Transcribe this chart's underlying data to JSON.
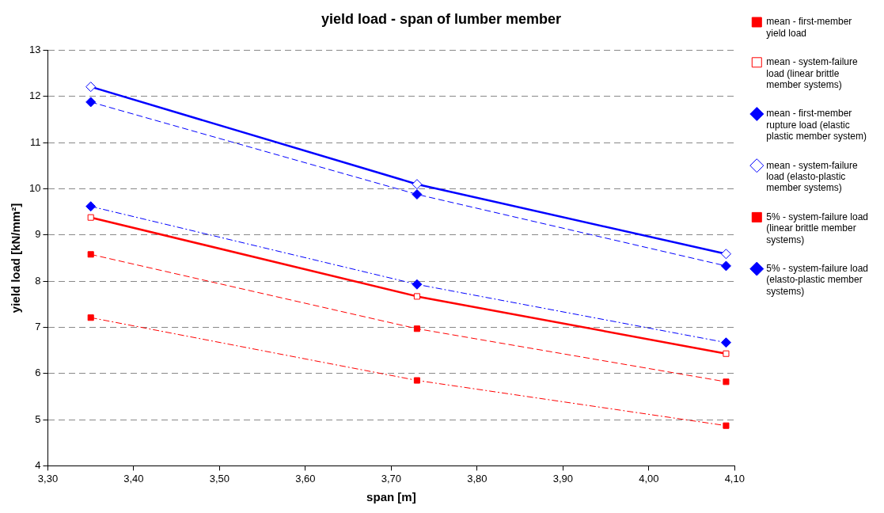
{
  "chart_data": {
    "type": "line",
    "title": "yield load - span of lumber member",
    "xlabel": "span [m]",
    "ylabel": "yield load [kN/mm²]",
    "x": [
      3.35,
      3.73,
      4.09
    ],
    "xlim": [
      3.3,
      4.1
    ],
    "xticks": [
      {
        "value": 3.3,
        "label": "3,30"
      },
      {
        "value": 3.4,
        "label": "3,40"
      },
      {
        "value": 3.5,
        "label": "3,50"
      },
      {
        "value": 3.6,
        "label": "3,60"
      },
      {
        "value": 3.7,
        "label": "3,70"
      },
      {
        "value": 3.8,
        "label": "3,80"
      },
      {
        "value": 3.9,
        "label": "3,90"
      },
      {
        "value": 4.0,
        "label": "4,00"
      },
      {
        "value": 4.1,
        "label": "4,10"
      }
    ],
    "ylim": [
      4,
      13
    ],
    "yticks": [
      4,
      5,
      6,
      7,
      8,
      9,
      10,
      11,
      12,
      13
    ],
    "grid": "y",
    "legend": "right",
    "series": [
      {
        "name": "mean - first-member yield load",
        "color": "#ff0000",
        "values": [
          8.58,
          6.97,
          5.82
        ],
        "marker": "square",
        "line_style": "dashed"
      },
      {
        "name": "mean - system-failure load (linear brittle member systems)",
        "color": "#ff0000",
        "values": [
          9.38,
          7.67,
          6.43
        ],
        "marker": "square-open",
        "line_style": "solid"
      },
      {
        "name": "mean - first-member rupture load (elastic plastic member system)",
        "color": "#0000ff",
        "values": [
          11.88,
          9.88,
          8.33
        ],
        "marker": "diamond",
        "line_style": "dashed"
      },
      {
        "name": "mean - system-failure load (elasto-plastic member systems)",
        "color": "#0000ff",
        "values": [
          12.21,
          10.1,
          8.59
        ],
        "marker": "diamond-open",
        "line_style": "solid"
      },
      {
        "name": "5% - system-failure load (linear brittle member systems)",
        "color": "#ff0000",
        "values": [
          7.21,
          5.85,
          4.87
        ],
        "marker": "square",
        "line_style": "dashdot"
      },
      {
        "name": "5% - system-failure load (elasto-plastic member systems)",
        "color": "#0000ff",
        "values": [
          9.62,
          7.93,
          6.67
        ],
        "marker": "diamond",
        "line_style": "dashdot"
      }
    ]
  }
}
